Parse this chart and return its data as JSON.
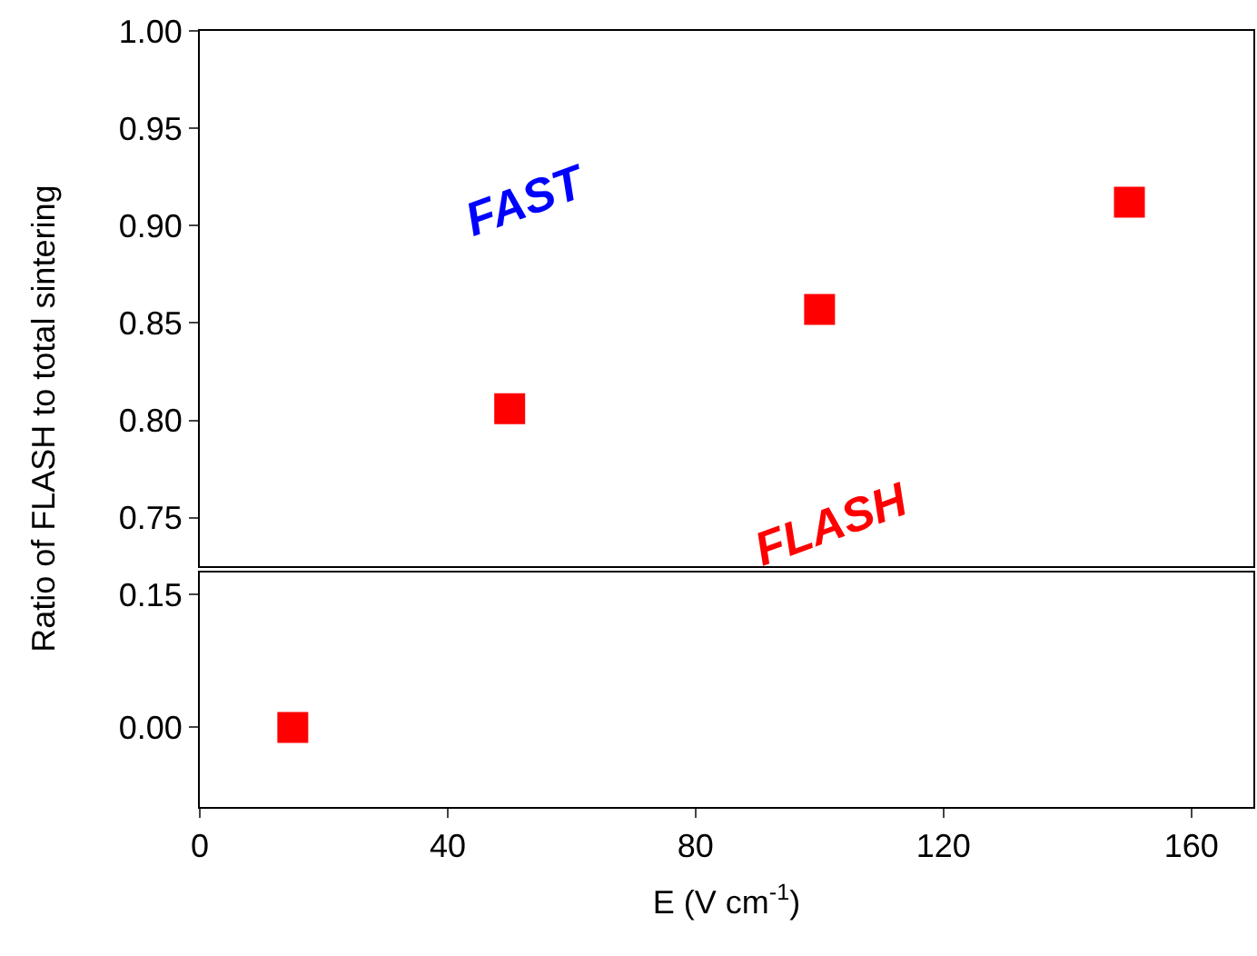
{
  "chart_data": [
    {
      "type": "scatter",
      "ylabel": "Ratio of FLASH to total sintering",
      "x": [
        50,
        100,
        150
      ],
      "series": [
        {
          "color": "#ff0000",
          "values": [
            0.806,
            0.857,
            0.912
          ]
        }
      ],
      "xlim": [
        0,
        170
      ],
      "ylim": [
        0.725,
        1.0
      ],
      "yticks": [
        0.75,
        {
          "value": 0.8,
          "label": "0.80"
        },
        0.85,
        {
          "value": 0.9,
          "label": "0.90"
        },
        0.95,
        {
          "value": 1.0,
          "label": "1.00"
        }
      ],
      "marker": "square",
      "tick_labels": "y",
      "annotations": [
        "FAST"
      ]
    },
    {
      "type": "scatter",
      "xlabel": "E (V cm$^{-1}$)",
      "x": [
        15
      ],
      "series": [
        {
          "color": "#ff0000",
          "values": [
            0.0
          ]
        }
      ],
      "xlim": [
        0,
        170
      ],
      "xticks": [
        0,
        40,
        80,
        120,
        160
      ],
      "ylim": [
        -0.09,
        0.175
      ],
      "yticks": [
        {
          "value": 0.0,
          "label": "0.00"
        },
        0.15
      ],
      "marker": "square",
      "annotations": [
        "FLASH"
      ]
    }
  ]
}
